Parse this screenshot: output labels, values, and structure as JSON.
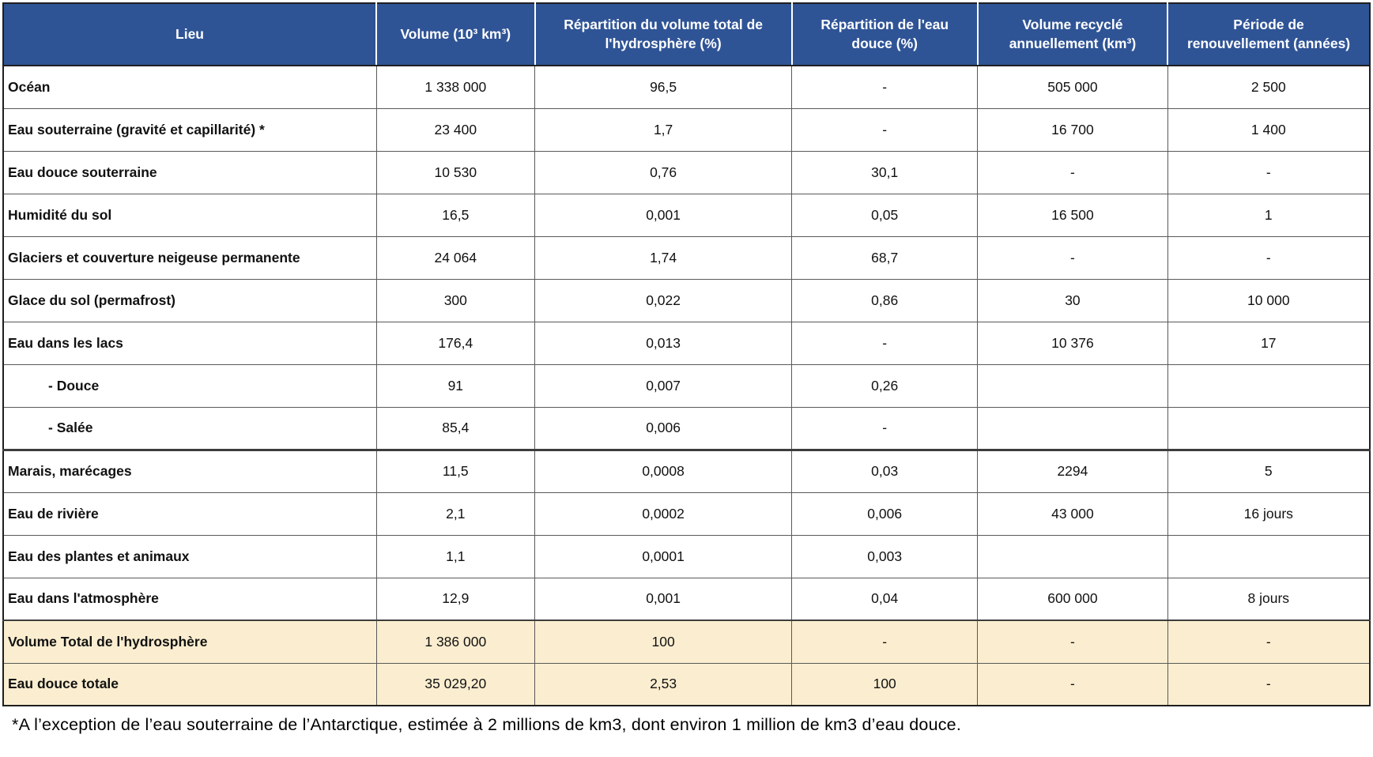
{
  "colors": {
    "header_bg": "#2F5496",
    "header_text": "#FFFFFF",
    "total_row_bg": "#FBEED0",
    "cell_border": "#595959"
  },
  "table": {
    "columns": [
      {
        "label": "Lieu"
      },
      {
        "label": "Volume (10³ km³)"
      },
      {
        "label": "Répartition du volume total de l'hydrosphère (%)"
      },
      {
        "label": "Répartition de l'eau douce (%)"
      },
      {
        "label": "Volume recyclé annuellement (km³)"
      },
      {
        "label": "Période de renouvellement (années)"
      }
    ],
    "rows": [
      {
        "variant": "data",
        "indent": false,
        "cells": [
          "Océan",
          "1 338 000",
          "96,5",
          "-",
          "505 000",
          "2 500"
        ]
      },
      {
        "variant": "data",
        "indent": false,
        "cells": [
          "Eau souterraine (gravité et capillarité) *",
          "23 400",
          "1,7",
          "-",
          "16 700",
          "1 400"
        ]
      },
      {
        "variant": "data",
        "indent": false,
        "cells": [
          "Eau douce souterraine",
          "10 530",
          "0,76",
          "30,1",
          "-",
          "-"
        ]
      },
      {
        "variant": "data",
        "indent": false,
        "cells": [
          "Humidité du sol",
          "16,5",
          "0,001",
          "0,05",
          "16 500",
          "1"
        ]
      },
      {
        "variant": "data",
        "indent": false,
        "cells": [
          "Glaciers et couverture neigeuse permanente",
          "24 064",
          "1,74",
          "68,7",
          "-",
          "-"
        ]
      },
      {
        "variant": "data",
        "indent": false,
        "cells": [
          "Glace du sol (permafrost)",
          "300",
          "0,022",
          "0,86",
          "30",
          "10 000"
        ]
      },
      {
        "variant": "data",
        "indent": false,
        "cells": [
          "Eau dans les lacs",
          "176,4",
          "0,013",
          "-",
          "10 376",
          "17"
        ]
      },
      {
        "variant": "data",
        "indent": true,
        "cells": [
          "- Douce",
          "91",
          "0,007",
          "0,26",
          "",
          ""
        ]
      },
      {
        "variant": "data",
        "indent": true,
        "cells": [
          "- Salée",
          "85,4",
          "0,006",
          "-",
          "",
          ""
        ]
      },
      {
        "variant": "data",
        "indent": false,
        "cells": [
          "Marais, marécages",
          "11,5",
          "0,0008",
          "0,03",
          "2294",
          "5"
        ]
      },
      {
        "variant": "data",
        "indent": false,
        "cells": [
          "Eau de rivière",
          "2,1",
          "0,0002",
          "0,006",
          "43 000",
          "16 jours"
        ]
      },
      {
        "variant": "data",
        "indent": false,
        "cells": [
          "Eau des plantes et animaux",
          "1,1",
          "0,0001",
          "0,003",
          "",
          ""
        ]
      },
      {
        "variant": "data",
        "indent": false,
        "cells": [
          "Eau dans l'atmosphère",
          "12,9",
          "0,001",
          "0,04",
          "600 000",
          "8 jours"
        ]
      },
      {
        "variant": "total",
        "indent": false,
        "cells": [
          "Volume Total de l'hydrosphère",
          "1 386 000",
          "100",
          "-",
          "-",
          "-"
        ]
      },
      {
        "variant": "total",
        "indent": false,
        "cells": [
          "Eau douce totale",
          "35 029,20",
          "2,53",
          "100",
          "-",
          "-"
        ]
      }
    ],
    "footnote": "*A l’exception de l’eau souterraine de l’Antarctique, estimée à 2 millions de km3, dont environ 1 million de km3 d’eau douce."
  }
}
